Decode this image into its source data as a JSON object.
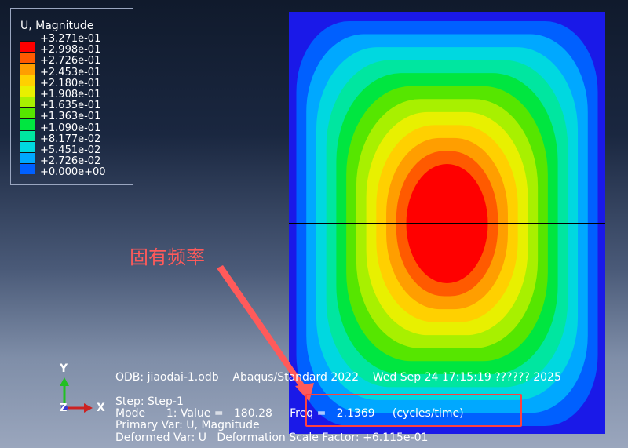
{
  "legend": {
    "title": "U, Magnitude",
    "levels": [
      "+3.271e-01",
      "+2.998e-01",
      "+2.726e-01",
      "+2.453e-01",
      "+2.180e-01",
      "+1.908e-01",
      "+1.635e-01",
      "+1.363e-01",
      "+1.090e-01",
      "+8.177e-02",
      "+5.451e-02",
      "+2.726e-02",
      "+0.000e+00"
    ],
    "colors": [
      "#ff0000",
      "#ff5a00",
      "#ff9e00",
      "#ffd000",
      "#e8f000",
      "#a8f000",
      "#56e600",
      "#00e640",
      "#00e6a0",
      "#00d8e0",
      "#00a8ff",
      "#0060ff",
      "#1a19e8"
    ]
  },
  "annotation": {
    "label": "固有频率"
  },
  "info": {
    "odb_line": "ODB: jiaodai-1.odb    Abaqus/Standard 2022    Wed Sep 24 17:15:19 ?????? 2025",
    "step_line": "Step: Step-1",
    "mode_line": "Mode      1: Value =   180.28     Freq =   2.1369     (cycles/time)",
    "primary_line": "Primary Var: U, Magnitude",
    "deformed_line": "Deformed Var: U   Deformation Scale Factor: +6.115e-01"
  },
  "triad": {
    "y_label": "Y",
    "z_label": "Z",
    "x_label": "X"
  }
}
